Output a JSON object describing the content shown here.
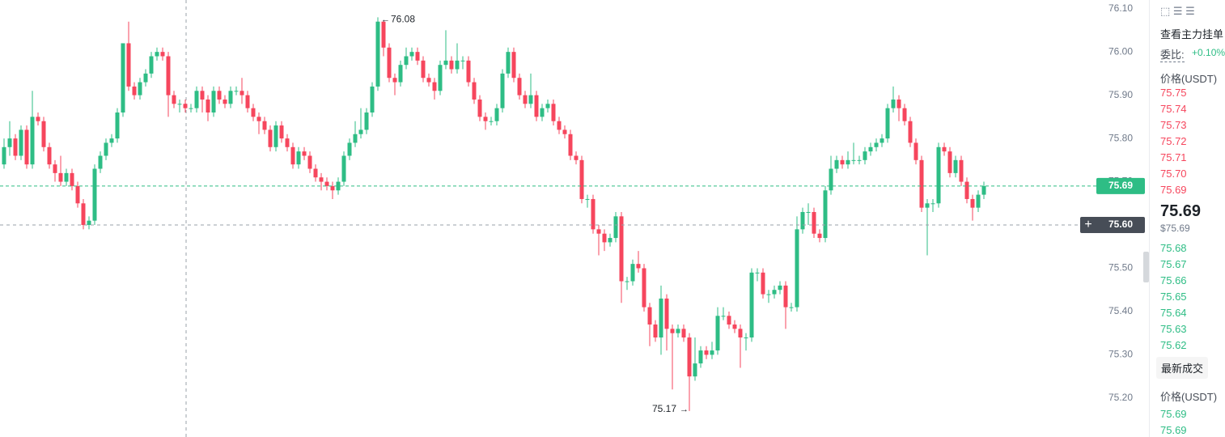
{
  "chart_data": {
    "type": "candlestick",
    "up_color": "#2ebd85",
    "down_color": "#f6465d",
    "open": [
      75.74,
      75.78,
      75.8,
      75.76,
      75.82,
      75.74,
      75.85,
      75.84,
      75.78,
      75.74,
      75.72,
      75.7,
      75.72,
      75.69,
      75.65,
      75.6,
      75.61,
      75.73,
      75.76,
      75.79,
      75.8,
      75.86,
      76.02,
      75.92,
      75.9,
      75.93,
      75.95,
      75.99,
      76.0,
      75.99,
      75.9,
      75.88,
      75.88,
      75.87,
      75.87,
      75.91,
      75.89,
      75.86,
      75.91,
      75.89,
      75.88,
      75.91,
      75.91,
      75.9,
      75.87,
      75.85,
      75.84,
      75.82,
      75.78,
      75.83,
      75.8,
      75.78,
      75.74,
      75.77,
      75.76,
      75.73,
      75.71,
      75.7,
      75.69,
      75.68,
      75.7,
      75.76,
      75.79,
      75.81,
      75.82,
      75.86,
      75.92,
      76.07,
      76.01,
      75.94,
      75.93,
      75.97,
      75.99,
      76.0,
      75.98,
      75.94,
      75.93,
      75.91,
      75.97,
      75.98,
      75.96,
      75.98,
      75.98,
      75.93,
      75.89,
      75.85,
      75.84,
      75.84,
      75.87,
      75.95,
      76.0,
      75.94,
      75.9,
      75.88,
      75.9,
      75.85,
      75.87,
      75.88,
      75.84,
      75.82,
      75.81,
      75.76,
      75.75,
      75.66,
      75.66,
      75.59,
      75.58,
      75.56,
      75.57,
      75.62,
      75.47,
      75.47,
      75.51,
      75.5,
      75.41,
      75.37,
      75.34,
      75.43,
      75.36,
      75.35,
      75.36,
      75.34,
      75.25,
      75.28,
      75.31,
      75.3,
      75.31,
      75.39,
      75.39,
      75.37,
      75.36,
      75.34,
      75.34,
      75.49,
      75.49,
      75.44,
      75.44,
      75.45,
      75.46,
      75.41,
      75.41,
      75.59,
      75.63,
      75.63,
      75.58,
      75.57,
      75.68,
      75.73,
      75.75,
      75.74,
      75.75,
      75.75,
      75.75,
      75.77,
      75.78,
      75.79,
      75.8,
      75.87,
      75.89,
      75.87,
      75.84,
      75.79,
      75.75,
      75.64,
      75.65,
      75.65,
      75.78,
      75.77,
      75.72,
      75.75,
      75.7,
      75.66,
      75.64,
      75.67
    ],
    "high": [
      75.8,
      75.84,
      75.81,
      75.83,
      75.83,
      75.91,
      75.86,
      75.85,
      75.79,
      75.75,
      75.76,
      75.73,
      75.73,
      75.7,
      75.66,
      75.62,
      75.74,
      75.77,
      75.8,
      75.81,
      75.87,
      76.02,
      76.07,
      75.93,
      75.94,
      75.96,
      76.0,
      76.01,
      76.01,
      76.0,
      75.91,
      75.89,
      75.89,
      75.88,
      75.92,
      75.92,
      75.9,
      75.92,
      75.92,
      75.9,
      75.92,
      75.92,
      75.94,
      75.91,
      75.88,
      75.86,
      75.85,
      75.83,
      75.84,
      75.84,
      75.81,
      75.79,
      75.78,
      75.78,
      75.77,
      75.74,
      75.72,
      75.71,
      75.7,
      75.71,
      75.77,
      75.8,
      75.84,
      75.87,
      75.87,
      75.93,
      76.08,
      76.07,
      76.02,
      75.95,
      75.98,
      76.01,
      76.01,
      76.01,
      75.99,
      75.95,
      75.94,
      75.98,
      76.05,
      75.99,
      76.02,
      75.99,
      75.99,
      75.94,
      75.9,
      75.86,
      75.85,
      75.88,
      75.96,
      76.01,
      76.01,
      75.95,
      75.91,
      75.95,
      75.91,
      75.88,
      75.89,
      75.89,
      75.85,
      75.83,
      75.82,
      75.77,
      75.76,
      75.67,
      75.67,
      75.6,
      75.59,
      75.58,
      75.63,
      75.63,
      75.48,
      75.52,
      75.54,
      75.51,
      75.42,
      75.38,
      75.46,
      75.44,
      75.37,
      75.37,
      75.37,
      75.35,
      75.34,
      75.32,
      75.32,
      75.33,
      75.41,
      75.41,
      75.4,
      75.38,
      75.37,
      75.35,
      75.5,
      75.5,
      75.5,
      75.45,
      75.46,
      75.47,
      75.47,
      75.42,
      75.62,
      75.64,
      75.65,
      75.64,
      75.59,
      75.69,
      75.76,
      75.76,
      75.76,
      75.77,
      75.79,
      75.76,
      75.78,
      75.79,
      75.8,
      75.81,
      75.88,
      75.92,
      75.9,
      75.88,
      75.85,
      75.8,
      75.76,
      75.66,
      75.66,
      75.79,
      75.79,
      75.78,
      75.76,
      75.76,
      75.71,
      75.67,
      75.68,
      75.7
    ],
    "low": [
      75.73,
      75.76,
      75.75,
      75.75,
      75.73,
      75.73,
      75.83,
      75.77,
      75.73,
      75.7,
      75.69,
      75.69,
      75.68,
      75.64,
      75.59,
      75.59,
      75.6,
      75.72,
      75.75,
      75.78,
      75.79,
      75.85,
      75.91,
      75.89,
      75.89,
      75.92,
      75.94,
      75.98,
      75.98,
      75.85,
      75.87,
      75.86,
      75.86,
      75.86,
      75.86,
      75.86,
      75.84,
      75.85,
      75.88,
      75.87,
      75.87,
      75.9,
      75.88,
      75.86,
      75.84,
      75.81,
      75.81,
      75.77,
      75.77,
      75.79,
      75.77,
      75.73,
      75.73,
      75.75,
      75.72,
      75.7,
      75.68,
      75.68,
      75.66,
      75.67,
      75.69,
      75.75,
      75.78,
      75.8,
      75.81,
      75.85,
      75.91,
      75.99,
      75.93,
      75.9,
      75.92,
      75.96,
      75.98,
      75.97,
      75.93,
      75.92,
      75.89,
      75.9,
      75.96,
      75.95,
      75.95,
      75.96,
      75.92,
      75.88,
      75.84,
      75.82,
      75.83,
      75.83,
      75.86,
      75.94,
      75.93,
      75.89,
      75.87,
      75.87,
      75.84,
      75.84,
      75.86,
      75.83,
      75.81,
      75.8,
      75.75,
      75.74,
      75.65,
      75.64,
      75.58,
      75.53,
      75.54,
      75.55,
      75.56,
      75.42,
      75.45,
      75.46,
      75.49,
      75.4,
      75.32,
      75.33,
      75.3,
      75.31,
      75.22,
      75.34,
      75.33,
      75.17,
      75.24,
      75.27,
      75.29,
      75.29,
      75.3,
      75.38,
      75.36,
      75.35,
      75.27,
      75.31,
      75.33,
      75.47,
      75.43,
      75.42,
      75.43,
      75.44,
      75.36,
      75.4,
      75.4,
      75.58,
      75.6,
      75.57,
      75.56,
      75.56,
      75.67,
      75.72,
      75.73,
      75.73,
      75.74,
      75.74,
      75.74,
      75.76,
      75.77,
      75.78,
      75.79,
      75.86,
      75.84,
      75.83,
      75.78,
      75.74,
      75.63,
      75.53,
      75.63,
      75.64,
      75.76,
      75.71,
      75.71,
      75.69,
      75.65,
      75.61,
      75.63,
      75.66
    ],
    "close": [
      75.78,
      75.8,
      75.76,
      75.82,
      75.74,
      75.85,
      75.84,
      75.78,
      75.74,
      75.72,
      75.7,
      75.72,
      75.69,
      75.65,
      75.6,
      75.61,
      75.73,
      75.76,
      75.79,
      75.8,
      75.86,
      76.02,
      75.92,
      75.9,
      75.93,
      75.95,
      75.99,
      76.0,
      75.99,
      75.9,
      75.88,
      75.88,
      75.87,
      75.87,
      75.91,
      75.89,
      75.86,
      75.91,
      75.89,
      75.88,
      75.91,
      75.91,
      75.9,
      75.87,
      75.85,
      75.84,
      75.82,
      75.78,
      75.83,
      75.8,
      75.78,
      75.74,
      75.77,
      75.76,
      75.73,
      75.71,
      75.7,
      75.69,
      75.68,
      75.7,
      75.76,
      75.79,
      75.81,
      75.82,
      75.86,
      75.92,
      76.07,
      76.01,
      75.94,
      75.93,
      75.97,
      75.99,
      76.0,
      75.98,
      75.94,
      75.93,
      75.91,
      75.97,
      75.98,
      75.96,
      75.98,
      75.98,
      75.93,
      75.89,
      75.85,
      75.84,
      75.84,
      75.87,
      75.95,
      76.0,
      75.94,
      75.9,
      75.88,
      75.9,
      75.85,
      75.87,
      75.88,
      75.84,
      75.82,
      75.81,
      75.76,
      75.75,
      75.66,
      75.66,
      75.59,
      75.58,
      75.56,
      75.57,
      75.62,
      75.47,
      75.47,
      75.51,
      75.5,
      75.41,
      75.37,
      75.34,
      75.43,
      75.36,
      75.35,
      75.36,
      75.34,
      75.25,
      75.28,
      75.31,
      75.3,
      75.31,
      75.39,
      75.39,
      75.37,
      75.36,
      75.34,
      75.34,
      75.49,
      75.49,
      75.44,
      75.44,
      75.45,
      75.46,
      75.41,
      75.41,
      75.59,
      75.63,
      75.63,
      75.58,
      75.57,
      75.68,
      75.73,
      75.75,
      75.74,
      75.75,
      75.75,
      75.75,
      75.77,
      75.78,
      75.79,
      75.8,
      75.87,
      75.89,
      75.87,
      75.84,
      75.79,
      75.75,
      75.64,
      75.65,
      75.65,
      75.78,
      75.77,
      75.72,
      75.75,
      75.7,
      75.66,
      75.64,
      75.67,
      75.69
    ],
    "ylim": [
      75.11,
      76.12
    ],
    "yticks": [
      {
        "value": 76.1,
        "label": "76.10"
      },
      {
        "value": 76.0,
        "label": "76.00"
      },
      {
        "value": 75.9,
        "label": "75.90"
      },
      {
        "value": 75.8,
        "label": "75.80"
      },
      {
        "value": 75.7,
        "label": "75.70"
      },
      {
        "value": 75.6,
        "label": "75.60"
      },
      {
        "value": 75.5,
        "label": "75.50"
      },
      {
        "value": 75.4,
        "label": "75.40"
      },
      {
        "value": 75.3,
        "label": "75.30"
      },
      {
        "value": 75.2,
        "label": "75.20"
      }
    ],
    "last_price": 75.69,
    "crosshair_price": {
      "value": 75.6,
      "label": "75.60"
    },
    "max_label": 76.08,
    "min_label": 75.17
  },
  "order_book": {
    "title": "查看主力挂单",
    "ratio_label": "委比:",
    "ratio": "+0.10%",
    "price_header": "价格(USDT)",
    "asks": [
      "75.75",
      "75.74",
      "75.73",
      "75.72",
      "75.71",
      "75.70",
      "75.69"
    ],
    "last": "75.69",
    "last_usd": "$75.69",
    "bids": [
      "75.68",
      "75.67",
      "75.66",
      "75.65",
      "75.64",
      "75.63",
      "75.62"
    ],
    "trades_button": "最新成交",
    "trades_header": "价格(USDT)",
    "trades": [
      "75.69",
      "75.69"
    ]
  }
}
